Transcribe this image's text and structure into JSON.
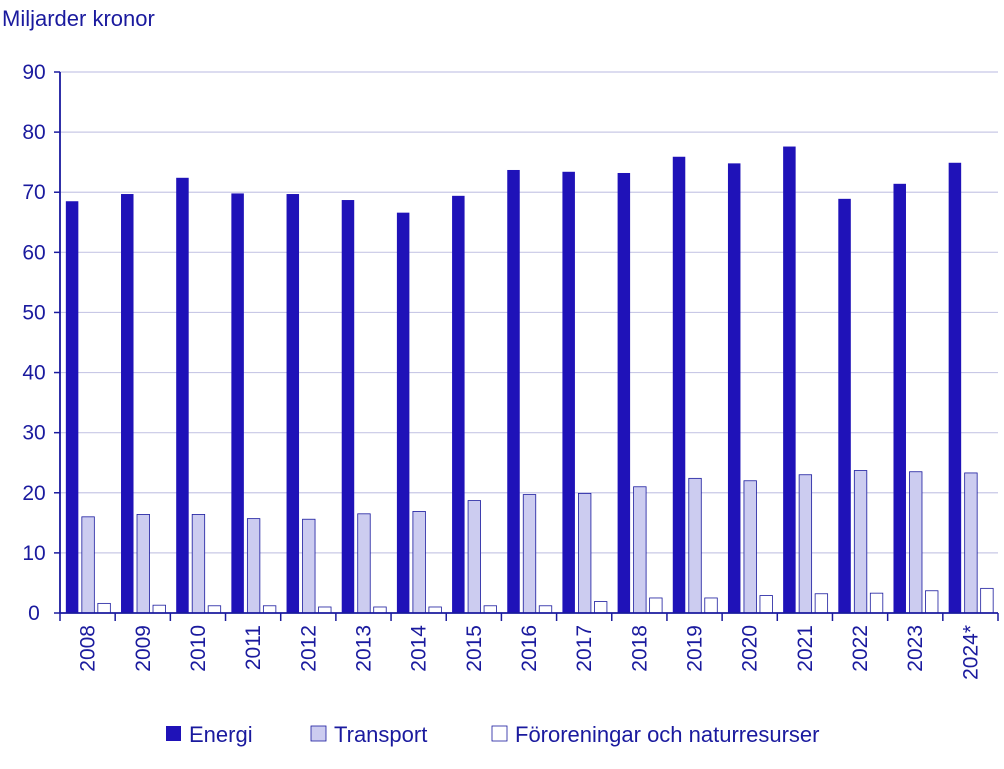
{
  "chart_data": {
    "type": "bar",
    "ylabel": "Miljarder kronor",
    "ylim": [
      0,
      90
    ],
    "yticks": [
      0,
      10,
      20,
      30,
      40,
      50,
      60,
      70,
      80,
      90
    ],
    "grid": true,
    "legend_position": "bottom",
    "categories": [
      "2008",
      "2009",
      "2010",
      "2011",
      "2012",
      "2013",
      "2014",
      "2015",
      "2016",
      "2017",
      "2018",
      "2019",
      "2020",
      "2021",
      "2022",
      "2023",
      "2024*"
    ],
    "series": [
      {
        "name": "Energi",
        "color": "#1f12b8",
        "values": [
          68.5,
          69.7,
          72.4,
          69.8,
          69.7,
          68.7,
          66.6,
          69.4,
          73.7,
          73.4,
          73.2,
          75.9,
          74.8,
          77.6,
          68.9,
          71.4,
          74.9
        ]
      },
      {
        "name": "Transport",
        "color": "#ccccf0",
        "values": [
          16.0,
          16.4,
          16.4,
          15.7,
          15.6,
          16.5,
          16.9,
          18.7,
          19.7,
          19.9,
          21.0,
          22.4,
          22.0,
          23.0,
          23.7,
          23.5,
          23.3
        ]
      },
      {
        "name": "Föroreningar och naturresurser",
        "color": "#ffffff",
        "values": [
          1.6,
          1.3,
          1.2,
          1.2,
          1.0,
          1.0,
          1.0,
          1.2,
          1.2,
          1.9,
          2.5,
          2.5,
          2.9,
          3.2,
          3.3,
          3.7,
          4.1
        ]
      }
    ]
  }
}
